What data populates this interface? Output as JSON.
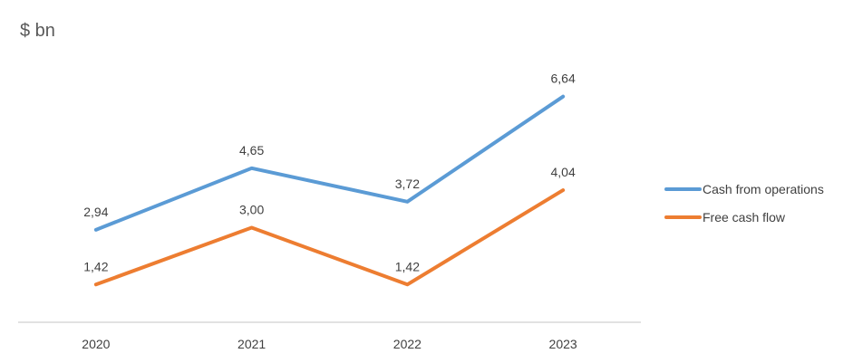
{
  "chart_data": {
    "type": "line",
    "unit_label": "$ bn",
    "categories": [
      "2020",
      "2021",
      "2022",
      "2023"
    ],
    "series": [
      {
        "name": "Cash from operations",
        "color": "#5b9bd5",
        "values": [
          2.94,
          4.65,
          3.72,
          6.64
        ],
        "labels": [
          "2,94",
          "4,65",
          "3,72",
          "6,64"
        ]
      },
      {
        "name": "Free cash flow",
        "color": "#ed7d31",
        "values": [
          1.42,
          3.0,
          1.42,
          4.04
        ],
        "labels": [
          "1,42",
          "3,00",
          "1,42",
          "4,04"
        ]
      }
    ],
    "ylim": [
      0,
      7.5
    ],
    "grid": false,
    "legend_position": "right"
  }
}
